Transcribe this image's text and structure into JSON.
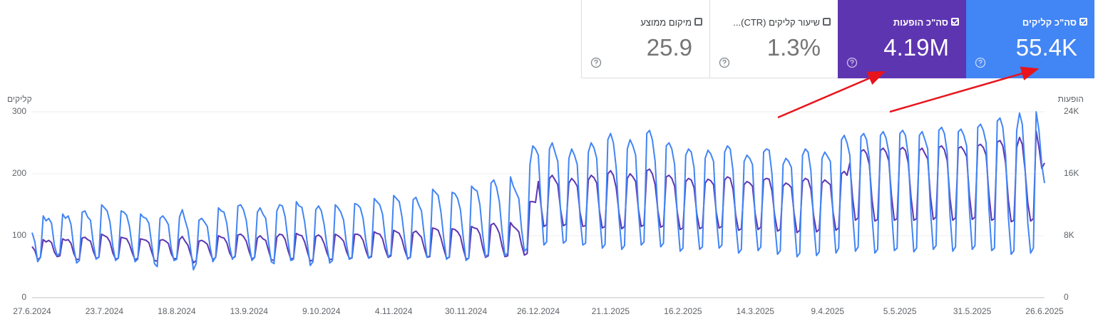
{
  "cards": [
    {
      "label": "סה\"כ קליקים",
      "value": "55.4K"
    },
    {
      "label": "סה\"כ הופעות",
      "value": "4.19M"
    },
    {
      "label": "שיעור קליקים (CTR)...",
      "value": "1.3%"
    },
    {
      "label": "מיקום ממוצע",
      "value": "25.9"
    }
  ],
  "chart_data": {
    "type": "line",
    "categories": [
      "27.6.2024",
      null,
      null,
      null,
      null,
      null,
      null,
      null,
      null,
      null,
      null,
      null,
      null,
      null,
      null,
      null,
      null,
      null,
      null,
      null,
      null,
      null,
      null,
      null,
      null,
      null,
      "23.7.2024",
      null,
      null,
      null,
      null,
      null,
      null,
      null,
      null,
      null,
      null,
      null,
      null,
      null,
      null,
      null,
      null,
      null,
      null,
      null,
      null,
      null,
      null,
      null,
      null,
      null,
      "18.8.2024",
      null,
      null,
      null,
      null,
      null,
      null,
      null,
      null,
      null,
      null,
      null,
      null,
      null,
      null,
      null,
      null,
      null,
      null,
      null,
      null,
      null,
      null,
      null,
      null,
      null,
      "13.9.2024",
      null,
      null,
      null,
      null,
      null,
      null,
      null,
      null,
      null,
      null,
      null,
      null,
      null,
      null,
      null,
      null,
      null,
      null,
      null,
      null,
      null,
      null,
      null,
      null,
      null,
      "9.10.2024",
      null,
      null,
      null,
      null,
      null,
      null,
      null,
      null,
      null,
      null,
      null,
      null,
      null,
      null,
      null,
      null,
      null,
      null,
      null,
      null,
      null,
      null,
      null,
      null,
      null,
      "4.11.2024",
      null,
      null,
      null,
      null,
      null,
      null,
      null,
      null,
      null,
      null,
      null,
      null,
      null,
      null,
      null,
      null,
      null,
      null,
      null,
      null,
      null,
      null,
      null,
      null,
      null,
      "30.11.2024",
      null,
      null,
      null,
      null,
      null,
      null,
      null,
      null,
      null,
      null,
      null,
      null,
      null,
      null,
      null,
      null,
      null,
      null,
      null,
      null,
      null,
      null,
      null,
      null,
      null,
      "26.12.2024",
      null,
      null,
      null,
      null,
      null,
      null,
      null,
      null,
      null,
      null,
      null,
      null,
      null,
      null,
      null,
      null,
      null,
      null,
      null,
      null,
      null,
      null,
      null,
      null,
      null,
      "21.1.2025",
      null,
      null,
      null,
      null,
      null,
      null,
      null,
      null,
      null,
      null,
      null,
      null,
      null,
      null,
      null,
      null,
      null,
      null,
      null,
      null,
      null,
      null,
      null,
      null,
      null,
      "16.2.2025",
      null,
      null,
      null,
      null,
      null,
      null,
      null,
      null,
      null,
      null,
      null,
      null,
      null,
      null,
      null,
      null,
      null,
      null,
      null,
      null,
      null,
      null,
      null,
      null,
      null,
      "14.3.2025",
      null,
      null,
      null,
      null,
      null,
      null,
      null,
      null,
      null,
      null,
      null,
      null,
      null,
      null,
      null,
      null,
      null,
      null,
      null,
      null,
      null,
      null,
      null,
      null,
      null,
      "9.4.2025",
      null,
      null,
      null,
      null,
      null,
      null,
      null,
      null,
      null,
      null,
      null,
      null,
      null,
      null,
      null,
      null,
      null,
      null,
      null,
      null,
      null,
      null,
      null,
      null,
      null,
      "5.5.2025",
      null,
      null,
      null,
      null,
      null,
      null,
      null,
      null,
      null,
      null,
      null,
      null,
      null,
      null,
      null,
      null,
      null,
      null,
      null,
      null,
      null,
      null,
      null,
      null,
      null,
      "31.5.2025",
      null,
      null,
      null,
      null,
      null,
      null,
      null,
      null,
      null,
      null,
      null,
      null,
      null,
      null,
      null,
      null,
      null,
      null,
      null,
      null,
      null,
      null,
      null,
      null,
      null,
      "26.6.2025"
    ],
    "series": [
      {
        "name": "קליקים",
        "color": "#4285f4",
        "values": [
          105,
          90,
          58,
          65,
          132,
          124,
          128,
          120,
          85,
          68,
          72,
          135,
          128,
          132,
          118,
          80,
          56,
          60,
          138,
          140,
          130,
          125,
          88,
          62,
          66,
          150,
          145,
          140,
          122,
          84,
          60,
          64,
          140,
          138,
          133,
          115,
          82,
          58,
          62,
          135,
          130,
          128,
          120,
          86,
          55,
          50,
          128,
          132,
          126,
          118,
          80,
          60,
          62,
          130,
          142,
          125,
          110,
          78,
          45,
          55,
          125,
          128,
          122,
          115,
          82,
          58,
          66,
          145,
          140,
          138,
          120,
          84,
          62,
          68,
          148,
          150,
          142,
          125,
          88,
          60,
          65,
          138,
          145,
          135,
          128,
          90,
          58,
          55,
          140,
          150,
          148,
          130,
          92,
          60,
          62,
          155,
          148,
          146,
          122,
          86,
          52,
          58,
          142,
          148,
          140,
          118,
          84,
          56,
          60,
          150,
          145,
          138,
          125,
          88,
          62,
          64,
          152,
          150,
          145,
          128,
          92,
          64,
          68,
          160,
          155,
          150,
          135,
          95,
          66,
          70,
          165,
          160,
          155,
          130,
          92,
          62,
          66,
          158,
          162,
          150,
          140,
          100,
          65,
          68,
          175,
          170,
          165,
          138,
          96,
          62,
          66,
          170,
          168,
          160,
          142,
          98,
          60,
          64,
          180,
          175,
          172,
          150,
          102,
          66,
          70,
          185,
          190,
          178,
          155,
          105,
          68,
          72,
          195,
          180,
          170,
          160,
          110,
          75,
          80,
          215,
          245,
          240,
          230,
          150,
          85,
          90,
          240,
          250,
          235,
          220,
          140,
          88,
          92,
          225,
          240,
          230,
          215,
          130,
          85,
          88,
          235,
          250,
          242,
          225,
          135,
          80,
          86,
          255,
          265,
          250,
          210,
          130,
          78,
          84,
          240,
          255,
          245,
          230,
          140,
          85,
          90,
          265,
          270,
          255,
          220,
          135,
          82,
          88,
          245,
          250,
          240,
          215,
          130,
          75,
          80,
          230,
          240,
          235,
          210,
          125,
          78,
          82,
          225,
          238,
          232,
          220,
          130,
          80,
          85,
          235,
          245,
          240,
          205,
          120,
          72,
          78,
          220,
          230,
          225,
          215,
          125,
          76,
          82,
          235,
          240,
          238,
          200,
          120,
          70,
          76,
          215,
          225,
          220,
          210,
          125,
          66,
          72,
          230,
          240,
          235,
          205,
          120,
          68,
          74,
          225,
          235,
          228,
          220,
          130,
          72,
          80,
          255,
          262,
          250,
          230,
          135,
          75,
          82,
          260,
          265,
          255,
          225,
          130,
          72,
          78,
          262,
          268,
          258,
          235,
          140,
          76,
          80,
          265,
          270,
          262,
          230,
          138,
          74,
          80,
          262,
          268,
          255,
          240,
          140,
          78,
          84,
          270,
          275,
          265,
          235,
          135,
          75,
          82,
          268,
          272,
          262,
          245,
          142,
          78,
          84,
          275,
          280,
          270,
          250,
          145,
          76,
          80,
          285,
          290,
          275,
          230,
          130,
          70,
          76,
          270,
          298,
          280,
          210,
          120,
          72,
          80,
          300,
          270,
          215,
          185
        ]
      },
      {
        "name": "הופעות",
        "color": "#5e35b1",
        "axis": "y2",
        "values": [
          6600,
          6100,
          4900,
          5200,
          7500,
          7200,
          7400,
          7100,
          5900,
          5300,
          5400,
          7600,
          7400,
          7500,
          7000,
          5700,
          4900,
          5000,
          7700,
          7800,
          7500,
          7300,
          6000,
          5100,
          5200,
          8200,
          8000,
          7800,
          7200,
          5800,
          5000,
          5100,
          7800,
          7700,
          7600,
          6900,
          5800,
          4900,
          5100,
          7600,
          7500,
          7400,
          7100,
          5900,
          4800,
          4700,
          7400,
          7500,
          7300,
          7000,
          5700,
          5000,
          5100,
          7500,
          7900,
          7300,
          6800,
          5600,
          4500,
          4800,
          7300,
          7400,
          7200,
          6900,
          5800,
          4900,
          5200,
          8000,
          7800,
          7700,
          7100,
          5800,
          5100,
          5300,
          8100,
          8200,
          7900,
          7300,
          6000,
          5000,
          5200,
          7700,
          8000,
          7600,
          7400,
          6100,
          4900,
          4800,
          7800,
          8200,
          8100,
          7500,
          6100,
          5000,
          5100,
          8300,
          8100,
          8000,
          7200,
          5900,
          4700,
          4900,
          7900,
          8100,
          7800,
          7000,
          5800,
          4900,
          5000,
          8200,
          8000,
          7700,
          7300,
          6000,
          5100,
          5100,
          8200,
          8200,
          8000,
          7400,
          6100,
          5100,
          5300,
          8500,
          8300,
          8200,
          7600,
          6200,
          5200,
          5400,
          8700,
          8500,
          8300,
          7500,
          6100,
          5100,
          5200,
          8400,
          8600,
          8200,
          7800,
          6400,
          5200,
          5300,
          9000,
          8900,
          8700,
          7700,
          6300,
          5100,
          5200,
          8900,
          8800,
          8500,
          7900,
          6300,
          5000,
          5100,
          9200,
          9000,
          8900,
          8200,
          6500,
          5200,
          5400,
          9400,
          9600,
          9100,
          8300,
          6600,
          5300,
          5400,
          9700,
          9200,
          8900,
          8500,
          6800,
          5500,
          5700,
          12400,
          12400,
          12300,
          15000,
          11800,
          9200,
          9400,
          15400,
          15800,
          15200,
          14600,
          11400,
          9300,
          9500,
          14800,
          15400,
          15000,
          14400,
          11000,
          9200,
          9300,
          15200,
          15800,
          15500,
          14800,
          11200,
          9000,
          9200,
          16000,
          16400,
          15800,
          14200,
          11000,
          8900,
          9200,
          15400,
          16000,
          15600,
          15000,
          11400,
          9200,
          9400,
          16400,
          16600,
          16000,
          14600,
          11200,
          9100,
          9300,
          15600,
          15800,
          15400,
          14400,
          11000,
          8800,
          9000,
          15000,
          15400,
          15200,
          14200,
          10800,
          8900,
          9100,
          14800,
          15300,
          15100,
          14600,
          11000,
          9000,
          9200,
          15200,
          15600,
          15400,
          14000,
          10600,
          8700,
          8900,
          14600,
          15000,
          14800,
          14400,
          10800,
          8800,
          9100,
          15200,
          15400,
          15300,
          13800,
          10600,
          8600,
          8800,
          14400,
          14800,
          14600,
          14200,
          10800,
          8400,
          8700,
          15000,
          15400,
          15200,
          14000,
          10600,
          8500,
          8800,
          14800,
          15200,
          14900,
          14600,
          11000,
          8700,
          9000,
          16000,
          16300,
          15800,
          17400,
          12900,
          10000,
          10300,
          18900,
          19100,
          18600,
          17200,
          12600,
          9900,
          10100,
          19000,
          19300,
          18800,
          17700,
          13100,
          10000,
          10200,
          19100,
          19400,
          19000,
          17400,
          13000,
          10000,
          10200,
          19000,
          19300,
          18600,
          17900,
          13100,
          10100,
          10400,
          19400,
          19600,
          19100,
          17700,
          12900,
          10000,
          10300,
          19300,
          19500,
          19000,
          18200,
          13200,
          10100,
          10400,
          19600,
          19800,
          19400,
          18400,
          13400,
          10000,
          10200,
          20100,
          20300,
          19600,
          17400,
          12600,
          9800,
          10000,
          19400,
          20700,
          19800,
          16500,
          12200,
          9900,
          10200,
          21500,
          19400,
          16700,
          17400
        ]
      }
    ],
    "ylim": [
      0,
      300
    ],
    "yticks": [
      0,
      100,
      200,
      300
    ],
    "y2lim": [
      0,
      24000
    ],
    "y2ticks": [
      0,
      {
        "value": 8000,
        "label": "8K"
      },
      {
        "value": 16000,
        "label": "16K"
      },
      {
        "value": 24000,
        "label": "24K"
      }
    ],
    "grid": true
  }
}
